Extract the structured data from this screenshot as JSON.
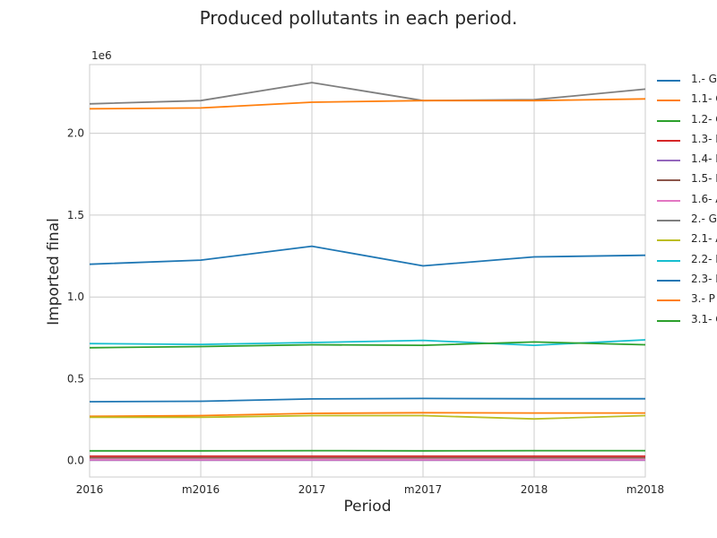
{
  "chart_data": {
    "type": "line",
    "title": "Produced pollutants in each period.",
    "xlabel": "Period",
    "ylabel": "Imported final",
    "y_offset_label": "1e6",
    "categories": [
      "2016",
      "m2016",
      "2017",
      "m2017",
      "2018",
      "m2018"
    ],
    "ylim": [
      -0.1,
      2.42
    ],
    "yticks": [
      0.0,
      0.5,
      1.0,
      1.5,
      2.0
    ],
    "ytick_labels": [
      "0.0",
      "0.5",
      "1.0",
      "1.5",
      "2.0"
    ],
    "grid": true,
    "legend_position": "right, outside plot",
    "series": [
      {
        "name": "1.- G",
        "color": "#1f77b4",
        "values": [
          0.36,
          0.363,
          0.377,
          0.38,
          0.378,
          0.378
        ]
      },
      {
        "name": "1.1- G",
        "color": "#ff7f0e",
        "values": [
          0.271,
          0.275,
          0.289,
          0.293,
          0.291,
          0.291
        ]
      },
      {
        "name": "1.2- C",
        "color": "#2ca02c",
        "values": [
          0.06,
          0.06,
          0.061,
          0.06,
          0.061,
          0.061
        ]
      },
      {
        "name": "1.3- I",
        "color": "#d62728",
        "values": [
          0.027,
          0.027,
          0.027,
          0.027,
          0.027,
          0.027
        ]
      },
      {
        "name": "1.4- I",
        "color": "#9467bd",
        "values": [
          0.003,
          0.003,
          0.003,
          0.003,
          0.003,
          0.003
        ]
      },
      {
        "name": "1.5- I",
        "color": "#8c564b",
        "values": [
          0.017,
          0.017,
          0.017,
          0.017,
          0.017,
          0.017
        ]
      },
      {
        "name": "1.6- A",
        "color": "#e377c2",
        "values": [
          0.006,
          0.006,
          0.006,
          0.006,
          0.006,
          0.006
        ]
      },
      {
        "name": "2.- G",
        "color": "#7f7f7f",
        "values": [
          2.18,
          2.2,
          2.31,
          2.2,
          2.205,
          2.27
        ]
      },
      {
        "name": "2.1- A",
        "color": "#bcbd22",
        "values": [
          0.265,
          0.265,
          0.275,
          0.275,
          0.255,
          0.275
        ]
      },
      {
        "name": "2.2- I",
        "color": "#17becf",
        "values": [
          0.715,
          0.71,
          0.722,
          0.735,
          0.705,
          0.738
        ]
      },
      {
        "name": "2.3- I",
        "color": "#1f77b4",
        "values": [
          1.2,
          1.225,
          1.31,
          1.19,
          1.245,
          1.255
        ]
      },
      {
        "name": "3.- P",
        "color": "#ff7f0e",
        "values": [
          2.15,
          2.155,
          2.19,
          2.2,
          2.2,
          2.21
        ]
      },
      {
        "name": "3.1- C",
        "color": "#2ca02c",
        "values": [
          0.69,
          0.697,
          0.708,
          0.705,
          0.725,
          0.708
        ]
      }
    ]
  }
}
